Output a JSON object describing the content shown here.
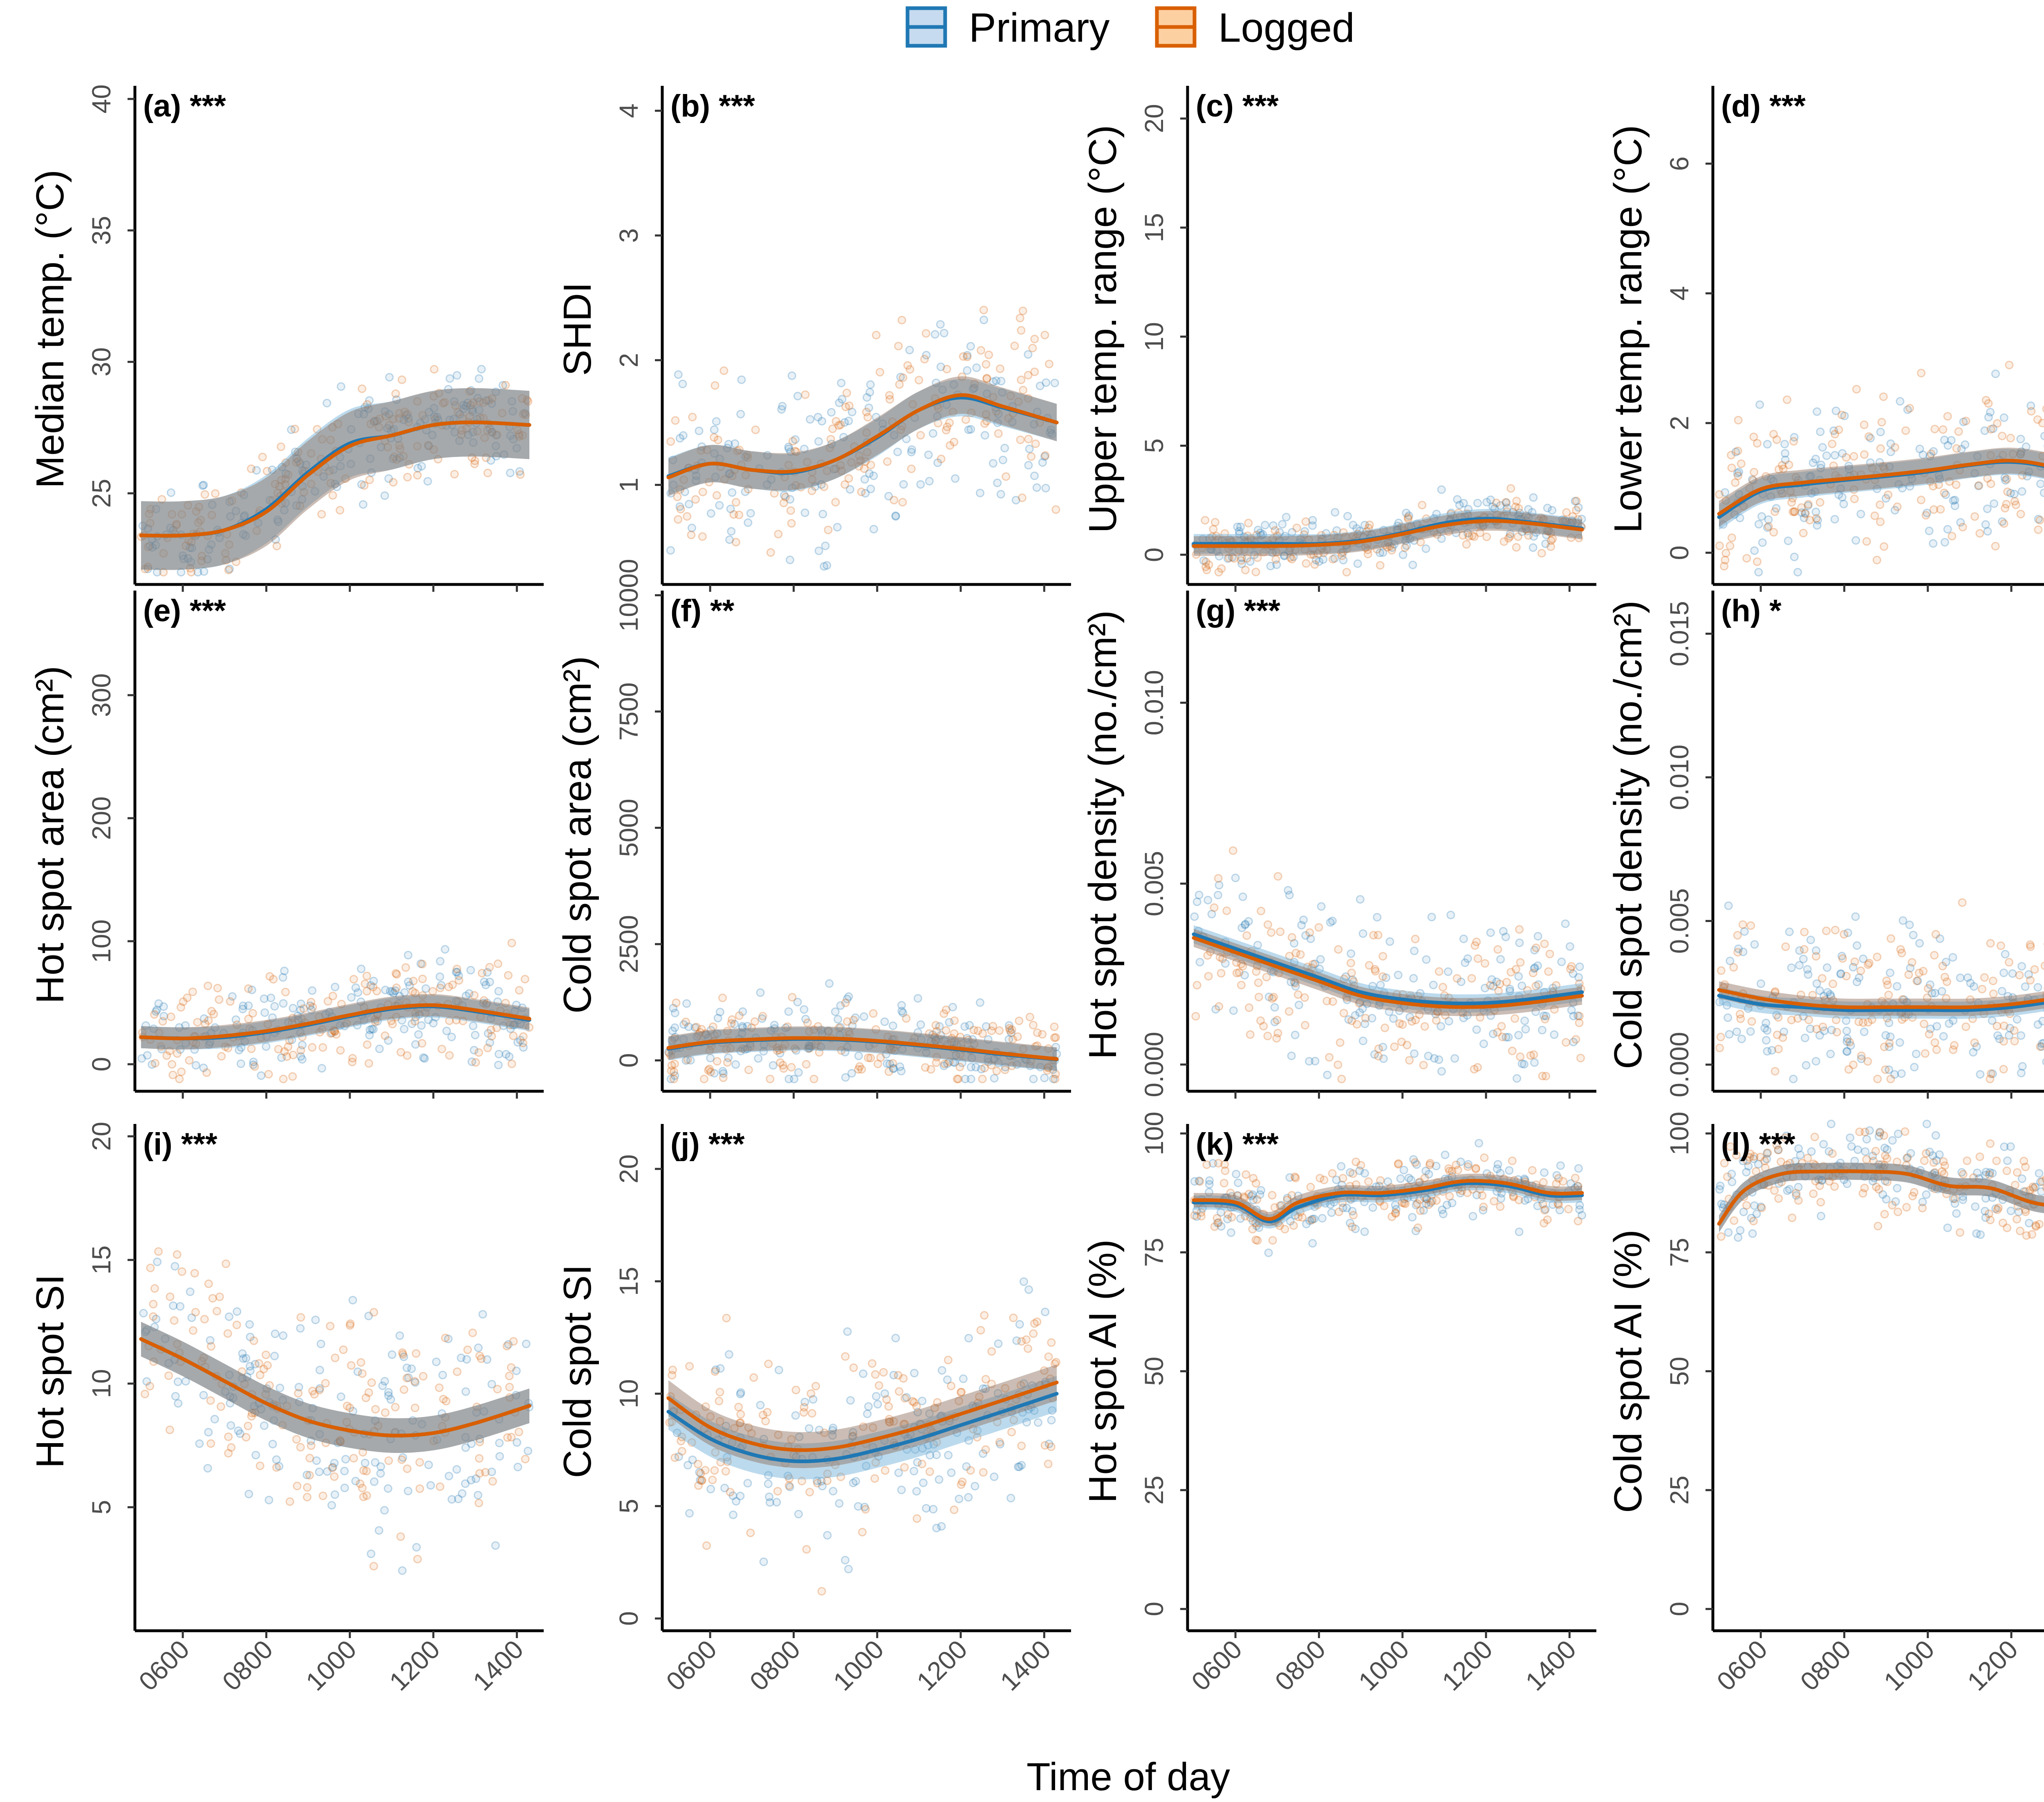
{
  "legend": {
    "entries": [
      {
        "label": "Primary",
        "color": "#1f78b4"
      },
      {
        "label": "Logged",
        "color": "#d95f02"
      }
    ]
  },
  "xlabel": "Time of day",
  "x_ticks": [
    {
      "v": 600,
      "label": "0600"
    },
    {
      "v": 800,
      "label": "0800"
    },
    {
      "v": 1000,
      "label": "1000"
    },
    {
      "v": 1200,
      "label": "1200"
    },
    {
      "v": 1400,
      "label": "1400"
    }
  ],
  "chart_data": [
    {
      "type": "scatter",
      "tag": "(a) ***",
      "ylabel": "Median temp. (°C)",
      "xlim": [
        500,
        1430
      ],
      "ylim": [
        22,
        40.5
      ],
      "yticks": [
        {
          "v": 25,
          "label": "25"
        },
        {
          "v": 30,
          "label": "30"
        },
        {
          "v": 35,
          "label": "35"
        },
        {
          "v": 40,
          "label": "40"
        }
      ],
      "band": 1.3,
      "scatter_spread": 1.6,
      "series": [
        {
          "name": "Primary",
          "x": [
            500,
            600,
            700,
            800,
            900,
            1000,
            1100,
            1200,
            1300,
            1430
          ],
          "y": [
            23.4,
            23.4,
            23.6,
            24.4,
            25.8,
            26.9,
            27.2,
            27.6,
            27.7,
            27.6
          ]
        },
        {
          "name": "Logged",
          "x": [
            500,
            600,
            700,
            800,
            900,
            1000,
            1100,
            1200,
            1300,
            1430
          ],
          "y": [
            23.4,
            23.4,
            23.6,
            24.3,
            25.7,
            26.8,
            27.2,
            27.6,
            27.7,
            27.6
          ]
        }
      ]
    },
    {
      "type": "scatter",
      "tag": "(b) ***",
      "ylabel": "SHDI",
      "xlim": [
        500,
        1430
      ],
      "ylim": [
        0.3,
        4.2
      ],
      "yticks": [
        {
          "v": 1,
          "label": "1"
        },
        {
          "v": 2,
          "label": "2"
        },
        {
          "v": 3,
          "label": "3"
        },
        {
          "v": 4,
          "label": "4"
        }
      ],
      "band": 0.15,
      "scatter_spread": 0.6,
      "series": [
        {
          "name": "Primary",
          "x": [
            500,
            600,
            700,
            800,
            900,
            1000,
            1100,
            1200,
            1300,
            1430
          ],
          "y": [
            1.07,
            1.17,
            1.12,
            1.1,
            1.2,
            1.38,
            1.6,
            1.7,
            1.62,
            1.5
          ]
        },
        {
          "name": "Logged",
          "x": [
            500,
            600,
            700,
            800,
            900,
            1000,
            1100,
            1200,
            1300,
            1430
          ],
          "y": [
            1.06,
            1.17,
            1.12,
            1.11,
            1.2,
            1.39,
            1.6,
            1.72,
            1.63,
            1.5
          ]
        }
      ]
    },
    {
      "type": "scatter",
      "tag": "(c) ***",
      "ylabel": "Upper temp. range (°C)",
      "xlim": [
        500,
        1430
      ],
      "ylim": [
        -0.8,
        21.5
      ],
      "yticks": [
        {
          "v": 0,
          "label": "0"
        },
        {
          "v": 5,
          "label": "5"
        },
        {
          "v": 10,
          "label": "10"
        },
        {
          "v": 15,
          "label": "15"
        },
        {
          "v": 20,
          "label": "20"
        }
      ],
      "band": 0.45,
      "scatter_spread": 1.0,
      "series": [
        {
          "name": "Primary",
          "x": [
            500,
            600,
            700,
            800,
            900,
            1000,
            1100,
            1200,
            1300,
            1430
          ],
          "y": [
            0.5,
            0.5,
            0.5,
            0.5,
            0.65,
            1.0,
            1.45,
            1.65,
            1.5,
            1.2
          ]
        },
        {
          "name": "Logged",
          "x": [
            500,
            600,
            700,
            800,
            900,
            1000,
            1100,
            1200,
            1300,
            1430
          ],
          "y": [
            0.4,
            0.4,
            0.4,
            0.45,
            0.6,
            0.95,
            1.35,
            1.55,
            1.45,
            1.15
          ]
        }
      ]
    },
    {
      "type": "scatter",
      "tag": "(d) ***",
      "ylabel": "Lower temp. range (°C)",
      "xlim": [
        500,
        1430
      ],
      "ylim": [
        -0.3,
        7.2
      ],
      "yticks": [
        {
          "v": 0,
          "label": "0"
        },
        {
          "v": 2,
          "label": "2"
        },
        {
          "v": 4,
          "label": "4"
        },
        {
          "v": 6,
          "label": "6"
        }
      ],
      "band": 0.2,
      "scatter_spread": 1.0,
      "series": [
        {
          "name": "Primary",
          "x": [
            500,
            600,
            700,
            800,
            900,
            1000,
            1100,
            1200,
            1300,
            1430
          ],
          "y": [
            0.55,
            0.95,
            1.05,
            1.12,
            1.18,
            1.25,
            1.35,
            1.4,
            1.3,
            1.0
          ]
        },
        {
          "name": "Logged",
          "x": [
            500,
            600,
            700,
            800,
            900,
            1000,
            1100,
            1200,
            1300,
            1430
          ],
          "y": [
            0.6,
            0.98,
            1.08,
            1.14,
            1.2,
            1.27,
            1.36,
            1.42,
            1.32,
            1.05
          ]
        }
      ]
    },
    {
      "type": "scatter",
      "tag": "(e) ***",
      "ylabel": "Hot spot area (cm²)",
      "xlim": [
        500,
        1430
      ],
      "ylim": [
        -12,
        385
      ],
      "yticks": [
        {
          "v": 0,
          "label": "0"
        },
        {
          "v": 100,
          "label": "100"
        },
        {
          "v": 200,
          "label": "200"
        },
        {
          "v": 300,
          "label": "300"
        }
      ],
      "band": 9,
      "scatter_spread": 35,
      "series": [
        {
          "name": "Primary",
          "x": [
            500,
            600,
            700,
            800,
            900,
            1000,
            1100,
            1200,
            1300,
            1430
          ],
          "y": [
            22,
            21,
            22,
            26,
            32,
            39,
            45,
            47,
            43,
            36
          ]
        },
        {
          "name": "Logged",
          "x": [
            500,
            600,
            700,
            800,
            900,
            1000,
            1100,
            1200,
            1300,
            1430
          ],
          "y": [
            22,
            21,
            23,
            27,
            33,
            40,
            46,
            48,
            44,
            37
          ]
        }
      ]
    },
    {
      "type": "scatter",
      "tag": "(f) **",
      "ylabel": "Cold spot area (cm²)",
      "xlim": [
        500,
        1430
      ],
      "ylim": [
        -400,
        10100
      ],
      "yticks": [
        {
          "v": 0,
          "label": "0"
        },
        {
          "v": 2500,
          "label": "2500"
        },
        {
          "v": 5000,
          "label": "5000"
        },
        {
          "v": 7500,
          "label": "7500"
        },
        {
          "v": 10000,
          "label": "10000"
        }
      ],
      "band": 250,
      "scatter_spread": 700,
      "series": [
        {
          "name": "Primary",
          "x": [
            500,
            600,
            700,
            800,
            900,
            1000,
            1100,
            1200,
            1300,
            1430
          ],
          "y": [
            250,
            380,
            430,
            460,
            450,
            400,
            320,
            230,
            130,
            20
          ]
        },
        {
          "name": "Logged",
          "x": [
            500,
            600,
            700,
            800,
            900,
            1000,
            1100,
            1200,
            1300,
            1430
          ],
          "y": [
            270,
            400,
            450,
            480,
            470,
            420,
            340,
            250,
            150,
            30
          ]
        }
      ]
    },
    {
      "type": "scatter",
      "tag": "(g) ***",
      "ylabel": "Hot spot density (no./cm²)",
      "xlim": [
        500,
        1430
      ],
      "ylim": [
        -0.0004,
        0.0131
      ],
      "yticks": [
        {
          "v": 0,
          "label": "0.000"
        },
        {
          "v": 0.005,
          "label": "0.005"
        },
        {
          "v": 0.01,
          "label": "0.010"
        }
      ],
      "band": 0.00025,
      "scatter_spread": 0.0018,
      "series": [
        {
          "name": "Primary",
          "x": [
            500,
            600,
            700,
            800,
            900,
            1000,
            1100,
            1200,
            1300,
            1430
          ],
          "y": [
            0.0036,
            0.0032,
            0.0028,
            0.0024,
            0.002,
            0.0018,
            0.0017,
            0.0017,
            0.0018,
            0.002
          ]
        },
        {
          "name": "Logged",
          "x": [
            500,
            600,
            700,
            800,
            900,
            1000,
            1100,
            1200,
            1300,
            1430
          ],
          "y": [
            0.0035,
            0.0031,
            0.0027,
            0.0023,
            0.0019,
            0.0017,
            0.0016,
            0.0016,
            0.0017,
            0.0019
          ]
        }
      ]
    },
    {
      "type": "scatter",
      "tag": "(h) *",
      "ylabel": "Cold spot density (no./cm²)",
      "xlim": [
        500,
        1430
      ],
      "ylim": [
        -0.0005,
        0.0165
      ],
      "yticks": [
        {
          "v": 0,
          "label": "0.000"
        },
        {
          "v": 0.005,
          "label": "0.005"
        },
        {
          "v": 0.01,
          "label": "0.010"
        },
        {
          "v": 0.015,
          "label": "0.015"
        }
      ],
      "band": 0.0003,
      "scatter_spread": 0.0022,
      "series": [
        {
          "name": "Primary",
          "x": [
            500,
            600,
            700,
            800,
            900,
            1000,
            1100,
            1200,
            1300,
            1430
          ],
          "y": [
            0.0024,
            0.0021,
            0.002,
            0.0019,
            0.0019,
            0.0019,
            0.0019,
            0.002,
            0.0022,
            0.0025
          ]
        },
        {
          "name": "Logged",
          "x": [
            500,
            600,
            700,
            800,
            900,
            1000,
            1100,
            1200,
            1300,
            1430
          ],
          "y": [
            0.0026,
            0.0023,
            0.0021,
            0.002,
            0.002,
            0.002,
            0.002,
            0.0021,
            0.0023,
            0.0026
          ]
        }
      ]
    },
    {
      "type": "scatter",
      "tag": "(i) ***",
      "ylabel": "Hot spot SI",
      "xlim": [
        500,
        1430
      ],
      "ylim": [
        0.5,
        20.5
      ],
      "yticks": [
        {
          "v": 5,
          "label": "5"
        },
        {
          "v": 10,
          "label": "10"
        },
        {
          "v": 15,
          "label": "15"
        },
        {
          "v": 20,
          "label": "20"
        }
      ],
      "band": 0.7,
      "scatter_spread": 3.5,
      "series": [
        {
          "name": "Primary",
          "x": [
            500,
            600,
            700,
            800,
            900,
            1000,
            1100,
            1200,
            1300,
            1430
          ],
          "y": [
            11.8,
            11.0,
            10.1,
            9.2,
            8.5,
            8.1,
            7.9,
            8.0,
            8.4,
            9.1
          ]
        },
        {
          "name": "Logged",
          "x": [
            500,
            600,
            700,
            800,
            900,
            1000,
            1100,
            1200,
            1300,
            1430
          ],
          "y": [
            11.8,
            11.0,
            10.1,
            9.2,
            8.5,
            8.1,
            7.9,
            8.0,
            8.4,
            9.1
          ]
        }
      ]
    },
    {
      "type": "scatter",
      "tag": "(j) ***",
      "ylabel": "Cold spot SI",
      "xlim": [
        500,
        1430
      ],
      "ylim": [
        0,
        22
      ],
      "yticks": [
        {
          "v": 0,
          "label": "0"
        },
        {
          "v": 5,
          "label": "5"
        },
        {
          "v": 10,
          "label": "10"
        },
        {
          "v": 15,
          "label": "15"
        },
        {
          "v": 20,
          "label": "20"
        }
      ],
      "band": 0.8,
      "scatter_spread": 3.8,
      "series": [
        {
          "name": "Primary",
          "x": [
            500,
            600,
            700,
            800,
            900,
            1000,
            1100,
            1200,
            1300,
            1430
          ],
          "y": [
            9.2,
            8.0,
            7.3,
            7.0,
            7.1,
            7.5,
            8.0,
            8.6,
            9.2,
            10.0
          ]
        },
        {
          "name": "Logged",
          "x": [
            500,
            600,
            700,
            800,
            900,
            1000,
            1100,
            1200,
            1300,
            1430
          ],
          "y": [
            9.8,
            8.5,
            7.8,
            7.5,
            7.6,
            8.0,
            8.5,
            9.1,
            9.7,
            10.5
          ]
        }
      ]
    },
    {
      "type": "scatter",
      "tag": "(k) ***",
      "ylabel": "Hot spot AI (%)",
      "xlim": [
        500,
        1430
      ],
      "ylim": [
        -2,
        102
      ],
      "yticks": [
        {
          "v": 0,
          "label": "0"
        },
        {
          "v": 25,
          "label": "25"
        },
        {
          "v": 50,
          "label": "50"
        },
        {
          "v": 75,
          "label": "75"
        },
        {
          "v": 100,
          "label": "100"
        }
      ],
      "band": 1.5,
      "scatter_spread": 6,
      "series": [
        {
          "name": "Primary",
          "x": [
            500,
            600,
            680,
            750,
            850,
            950,
            1050,
            1150,
            1250,
            1350,
            1430
          ],
          "y": [
            85.5,
            85.0,
            81.5,
            84.5,
            87.0,
            87.0,
            88.0,
            89.5,
            89.0,
            87.0,
            87.0
          ]
        },
        {
          "name": "Logged",
          "x": [
            500,
            600,
            680,
            750,
            850,
            950,
            1050,
            1150,
            1250,
            1350,
            1430
          ],
          "y": [
            86.0,
            85.5,
            82.0,
            85.5,
            87.5,
            87.5,
            88.5,
            90.0,
            89.5,
            87.5,
            87.5
          ]
        }
      ]
    },
    {
      "type": "scatter",
      "tag": "(l) ***",
      "ylabel": "Cold spot AI (%)",
      "xlim": [
        500,
        1430
      ],
      "ylim": [
        -2,
        102
      ],
      "yticks": [
        {
          "v": 0,
          "label": "0"
        },
        {
          "v": 25,
          "label": "25"
        },
        {
          "v": 50,
          "label": "50"
        },
        {
          "v": 75,
          "label": "75"
        },
        {
          "v": 100,
          "label": "100"
        }
      ],
      "band": 1.8,
      "scatter_spread": 8,
      "series": [
        {
          "name": "Primary",
          "x": [
            500,
            560,
            650,
            750,
            850,
            950,
            1050,
            1150,
            1250,
            1350,
            1430
          ],
          "y": [
            81.0,
            88.0,
            91.5,
            92.0,
            92.0,
            91.5,
            89.0,
            88.5,
            85.5,
            84.0,
            80.5
          ]
        },
        {
          "name": "Logged",
          "x": [
            500,
            560,
            650,
            750,
            850,
            950,
            1050,
            1150,
            1250,
            1350,
            1430
          ],
          "y": [
            81.0,
            88.0,
            91.5,
            92.0,
            92.0,
            91.5,
            89.0,
            88.5,
            85.5,
            84.0,
            80.5
          ]
        }
      ]
    }
  ]
}
